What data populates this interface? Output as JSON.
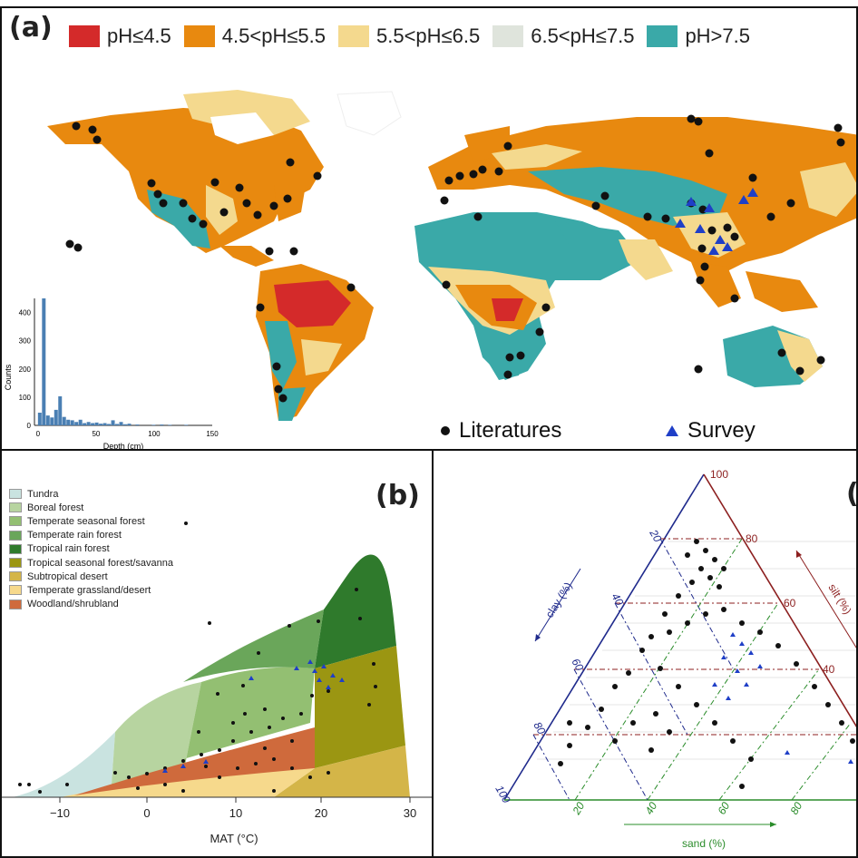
{
  "panel_a": {
    "label": "(a)",
    "ph_legend": [
      {
        "label": "pH≤4.5",
        "color": "#d42a2a"
      },
      {
        "label": "4.5<pH≤5.5",
        "color": "#e8890f"
      },
      {
        "label": "5.5<pH≤6.5",
        "color": "#f4d98e"
      },
      {
        "label": "6.5<pH≤7.5",
        "color": "#dfe4dc"
      },
      {
        "label": "pH>7.5",
        "color": "#3aa9a8"
      }
    ],
    "markers": {
      "literatures": "Literatures",
      "survey": "Survey"
    },
    "inset": {
      "ylabel": "Counts",
      "xlabel": "Depth (cm)",
      "yticks": [
        "0",
        "100",
        "200",
        "300",
        "400"
      ],
      "xticks": [
        "0",
        "50",
        "100",
        "150"
      ]
    }
  },
  "panel_b": {
    "label": "(b)",
    "xlabel": "MAT (°C)",
    "xticks": [
      "−10",
      "0",
      "10",
      "20",
      "30"
    ],
    "biomes": [
      {
        "label": "Tundra",
        "color": "#c9e3e0"
      },
      {
        "label": "Boreal forest",
        "color": "#b7d4a0"
      },
      {
        "label": "Temperate seasonal forest",
        "color": "#93bf72"
      },
      {
        "label": "Temperate rain forest",
        "color": "#6aa65a"
      },
      {
        "label": "Tropical rain forest",
        "color": "#2f7a2c"
      },
      {
        "label": "Tropical seasonal forest/savanna",
        "color": "#9b9612"
      },
      {
        "label": "Subtropical desert",
        "color": "#d4b548"
      },
      {
        "label": "Temperate grassland/desert",
        "color": "#f6d98c"
      },
      {
        "label": "Woodland/shrubland",
        "color": "#cf6a3c"
      }
    ]
  },
  "panel_c": {
    "label": "(",
    "top_tick": "100",
    "clay_ticks": [
      "20",
      "40",
      "60",
      "80",
      "100"
    ],
    "silt_ticks": [
      "80",
      "60",
      "40"
    ],
    "sand_ticks": [
      "20",
      "40",
      "60",
      "80"
    ],
    "clay_label": "clay (%)",
    "silt_label": "silt (%)",
    "sand_label": "sand (%)"
  },
  "chart_data": [
    {
      "type": "bar",
      "title": "",
      "xlabel": "Depth (cm)",
      "ylabel": "Counts",
      "ylim": [
        0,
        450
      ],
      "xlim": [
        -3,
        150
      ],
      "bin_width": 3.5,
      "bin_starts": [
        0,
        3.5,
        7,
        10.5,
        14,
        17.5,
        21,
        24.5,
        28,
        31.5,
        35,
        38.5,
        42,
        45.5,
        49,
        52.5,
        56,
        59.5,
        63,
        66.5,
        70,
        73.5,
        77,
        84,
        98,
        105,
        112,
        126
      ],
      "values": [
        45,
        450,
        35,
        28,
        55,
        103,
        30,
        20,
        18,
        12,
        20,
        8,
        12,
        8,
        10,
        6,
        8,
        5,
        18,
        5,
        12,
        4,
        6,
        3,
        2,
        3,
        2,
        2
      ]
    }
  ]
}
